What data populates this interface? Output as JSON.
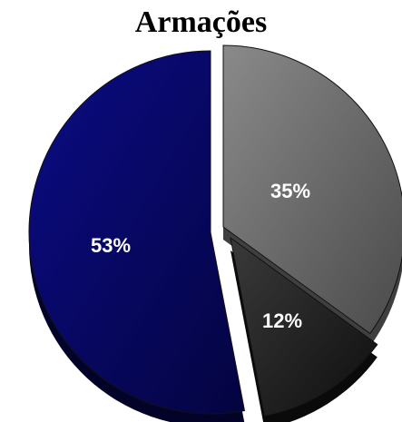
{
  "chart_data": {
    "type": "pie",
    "title": "Armações",
    "slices": [
      {
        "label": "35%",
        "value": 35,
        "color": "#6e6e6e"
      },
      {
        "label": "12%",
        "value": 12,
        "color": "#2a2a2a"
      },
      {
        "label": "53%",
        "value": 53,
        "color": "#0a0a6e"
      }
    ],
    "exploded": true,
    "three_d": true
  }
}
